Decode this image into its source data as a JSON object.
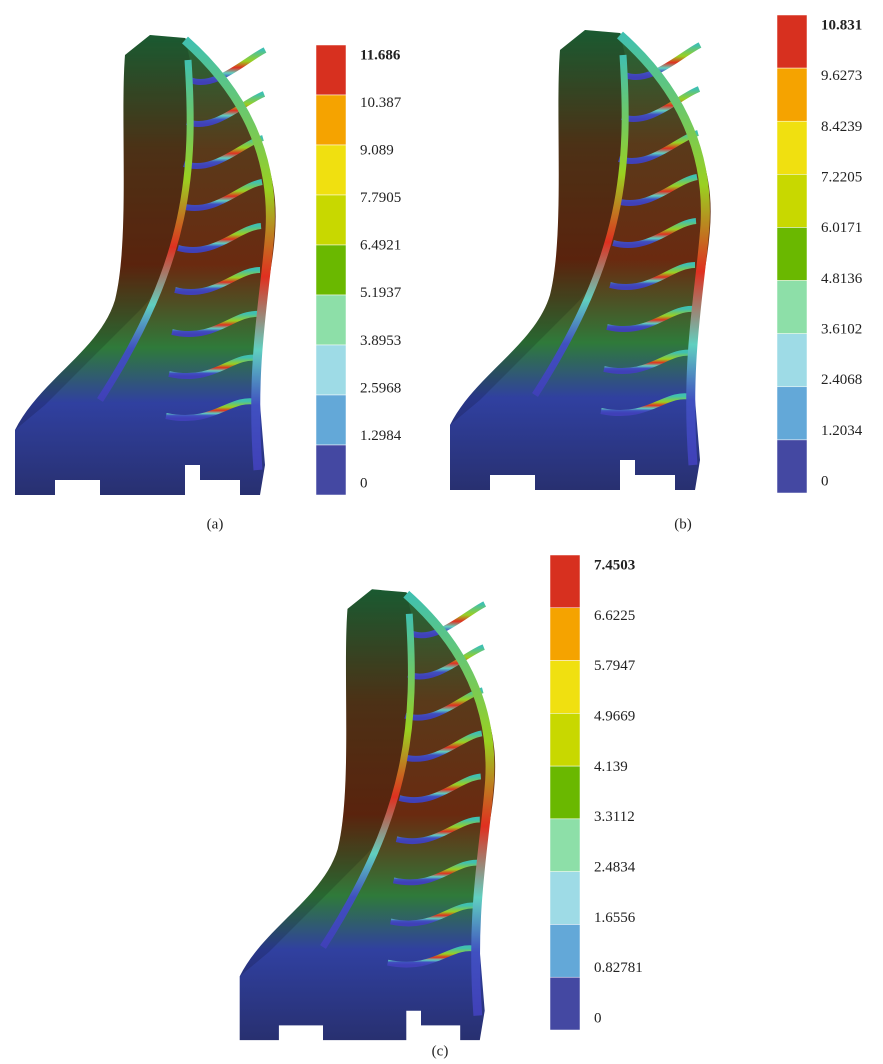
{
  "panels": [
    {
      "caption": "(a)",
      "legend": [
        "11.686",
        "10.387",
        "9.089",
        "7.7905",
        "6.4921",
        "5.1937",
        "3.8953",
        "2.5968",
        "1.2984",
        "0"
      ]
    },
    {
      "caption": "(b)",
      "legend": [
        "10.831",
        "9.6273",
        "8.4239",
        "7.2205",
        "6.0171",
        "4.8136",
        "3.6102",
        "2.4068",
        "1.2034",
        "0"
      ]
    },
    {
      "caption": "(c)",
      "legend": [
        "7.4503",
        "6.6225",
        "5.7947",
        "4.9669",
        "4.139",
        "3.3112",
        "2.4834",
        "1.6556",
        "0.82781",
        "0"
      ]
    }
  ]
}
